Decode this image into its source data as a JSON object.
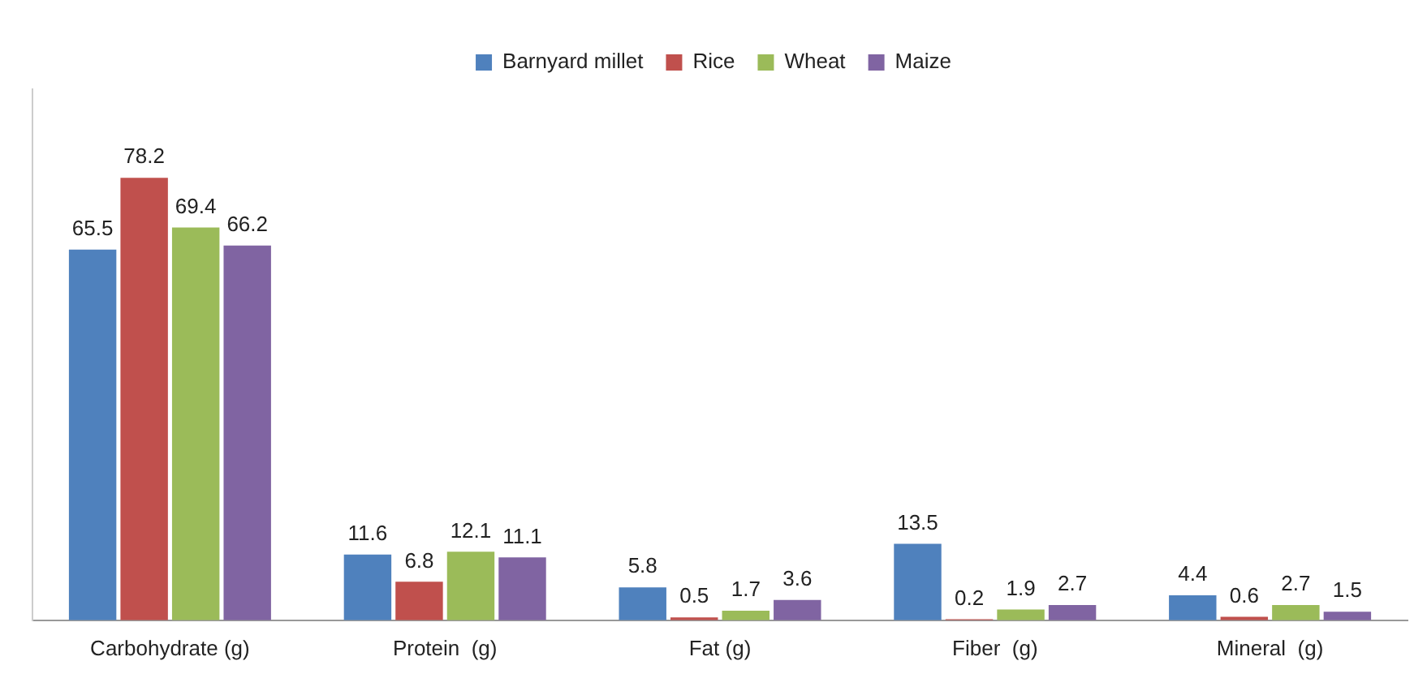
{
  "chart_data": {
    "type": "bar",
    "categories": [
      "Carbohydrate (g)",
      "Protein  (g)",
      "Fat (g)",
      "Fiber  (g)",
      "Mineral  (g)"
    ],
    "series": [
      {
        "name": "Barnyard millet",
        "color": "#4f81bd",
        "values": [
          65.5,
          11.6,
          5.8,
          13.5,
          4.4
        ]
      },
      {
        "name": "Rice",
        "color": "#c0504d",
        "values": [
          78.2,
          6.8,
          0.5,
          0.2,
          0.6
        ]
      },
      {
        "name": "Wheat",
        "color": "#9bbb59",
        "values": [
          69.4,
          12.1,
          1.7,
          1.9,
          2.7
        ]
      },
      {
        "name": "Maize",
        "color": "#8064a2",
        "values": [
          66.2,
          11.1,
          3.6,
          2.7,
          1.5
        ]
      }
    ],
    "data_labels": true,
    "legend": "top",
    "grid": false
  }
}
